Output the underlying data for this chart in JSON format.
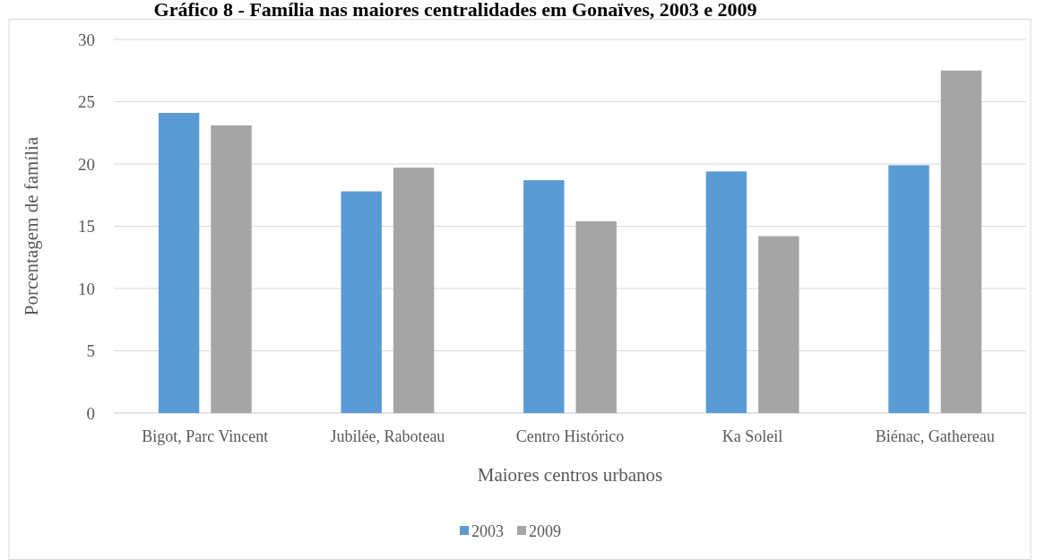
{
  "chart_data": {
    "type": "bar",
    "title": "Gráfico 8 - Família nas maiores centralidades em Gonaïves, 2003 e 2009",
    "xlabel": "Maiores centros urbanos",
    "ylabel": "Porcentagem de família",
    "categories": [
      "Bigot, Parc Vincent",
      "Jubilée, Raboteau",
      "Centro Histórico",
      "Ka Soleil",
      "Biénac, Gathereau"
    ],
    "series": [
      {
        "name": "2003",
        "color": "#5b9bd5",
        "values": [
          24.1,
          17.8,
          18.7,
          19.4,
          19.9
        ]
      },
      {
        "name": "2009",
        "color": "#a5a5a5",
        "values": [
          23.1,
          19.7,
          15.4,
          14.2,
          27.5
        ]
      }
    ],
    "ylim": [
      0,
      30
    ],
    "yticks": [
      0,
      5,
      10,
      15,
      20,
      25,
      30
    ],
    "grid": "y",
    "legend": "bottom"
  }
}
